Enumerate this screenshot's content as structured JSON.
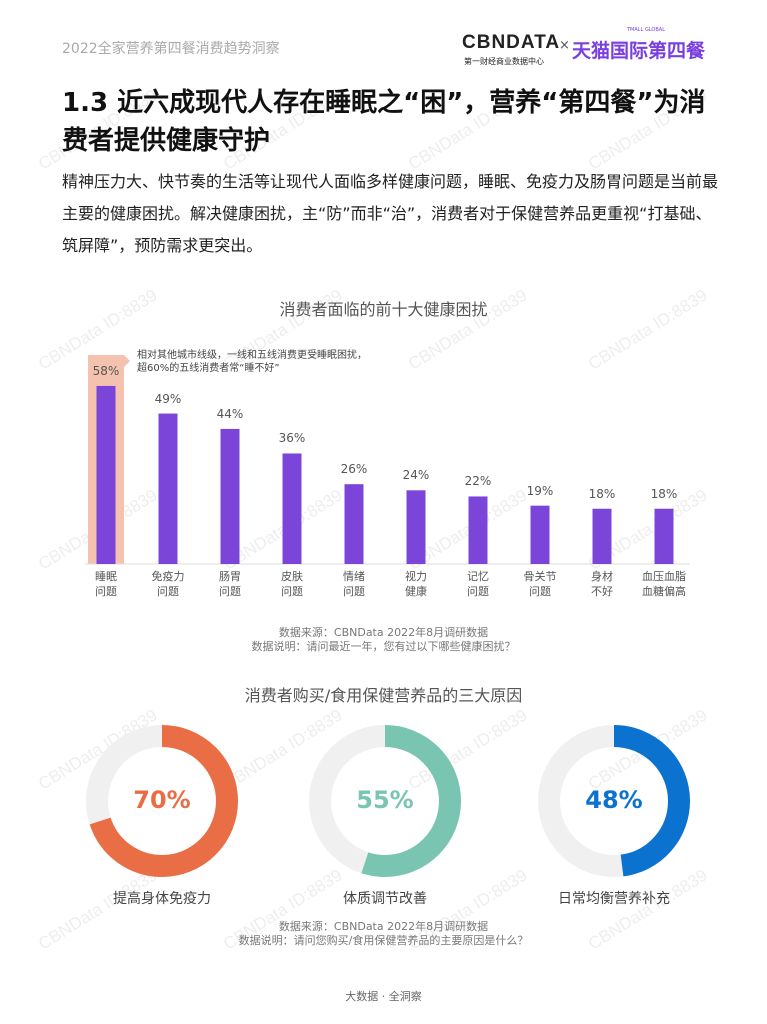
{
  "header": {
    "report_title": "2022全家营养第四餐消费趋势洞察",
    "logo_cbndata": "CBNDATA",
    "logo_cbndata_sub": "第一财经商业数据中心",
    "logo_separator": "×",
    "logo_tmall": "天猫国际第四餐",
    "logo_tmall_sub": "TMALL GLOBAL"
  },
  "title": "1.3 近六成现代人存在睡眠之“困”，营养“第四餐”为消费者提供健康守护",
  "intro": "精神压力大、快节奏的生活等让现代人面临多样健康问题，睡眠、免疫力及肠胃问题是当前最主要的健康困扰。解决健康困扰，主“防”而非“治”，消费者对于保健营养品更重视“打基础、筑屏障”，预防需求更突出。",
  "chart_data": [
    {
      "type": "bar",
      "title": "消费者面临的前十大健康困扰",
      "categories": [
        "睡眠\n问题",
        "免疫力\n问题",
        "肠胃\n问题",
        "皮肤\n问题",
        "情绪\n问题",
        "视力\n健康",
        "记忆\n问题",
        "骨关节\n问题",
        "身材\n不好",
        "血压血脂\n血糖偏高"
      ],
      "values": [
        58,
        49,
        44,
        36,
        26,
        24,
        22,
        19,
        18,
        18
      ],
      "value_labels": [
        "58%",
        "49%",
        "44%",
        "36%",
        "26%",
        "24%",
        "22%",
        "19%",
        "18%",
        "18%"
      ],
      "highlight_index": 0,
      "annotation": [
        "相对其他城市线级，一线和五线消费更受睡眠困扰，",
        "超60%的五线消费者常“睡不好”"
      ],
      "bar_color": "#7B45D9",
      "highlight_color": "#F5C2B0",
      "notes": [
        "数据来源：CBNData 2022年8月调研数据",
        "数据说明：请问最近一年，您有过以下哪些健康困扰？"
      ]
    },
    {
      "type": "pie",
      "title": "消费者购买/食用保健营养品的三大原因",
      "items": [
        {
          "label": "提高身体免疫力",
          "value": 70,
          "value_label": "70%",
          "color": "#EA6E45"
        },
        {
          "label": "体质调节改善",
          "value": 55,
          "value_label": "55%",
          "color": "#79C5B2"
        },
        {
          "label": "日常均衡营养补充",
          "value": 48,
          "value_label": "48%",
          "color": "#0B72CF"
        }
      ],
      "track_color": "#F0F0F0",
      "notes": [
        "数据来源：CBNData 2022年8月调研数据",
        "数据说明：请问您购买/食用保健营养品的主要原因是什么？"
      ]
    }
  ],
  "watermark": "CBNData ID:8839",
  "footer": "大数据 · 全洞察"
}
